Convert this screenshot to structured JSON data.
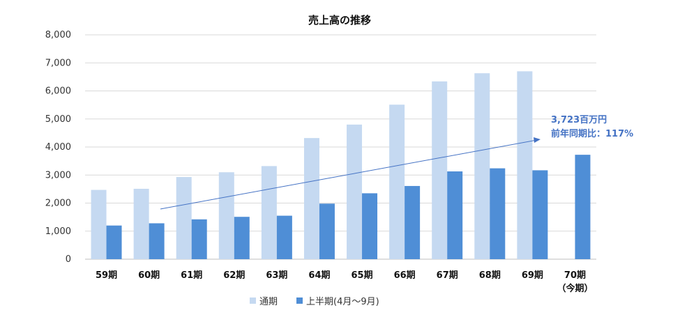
{
  "colors": {
    "annual": "#c5d9f1",
    "half": "#4f8ed6",
    "annotation": "#4472c4",
    "gridline": "#d9d9d9",
    "axis": "#bfbfbf"
  },
  "chart_data": {
    "type": "bar",
    "title": "売上高の推移",
    "xlabel": "",
    "ylabel": "",
    "ylim": [
      0,
      8000
    ],
    "yticks": [
      "0",
      "1,000",
      "2,000",
      "3,000",
      "4,000",
      "5,000",
      "6,000",
      "7,000",
      "8,000"
    ],
    "grid": true,
    "legend_position": "bottom",
    "categories": [
      "59期",
      "60期",
      "61期",
      "62期",
      "63期",
      "64期",
      "65期",
      "66期",
      "67期",
      "68期",
      "69期",
      "70期"
    ],
    "category_sublabels": [
      "",
      "",
      "",
      "",
      "",
      "",
      "",
      "",
      "",
      "",
      "",
      "（今期）"
    ],
    "series": [
      {
        "name": "通期",
        "values": [
          2470,
          2510,
          2930,
          3100,
          3320,
          4320,
          4800,
          5510,
          6340,
          6630,
          6700,
          null
        ]
      },
      {
        "name": "上半期(4月〜9月)",
        "values": [
          1200,
          1280,
          1420,
          1510,
          1550,
          1980,
          2350,
          2610,
          3130,
          3240,
          3170,
          3723
        ]
      }
    ],
    "annotation": {
      "lines": [
        "3,723百万円",
        "前年同期比：117%"
      ],
      "arrow": true
    }
  }
}
